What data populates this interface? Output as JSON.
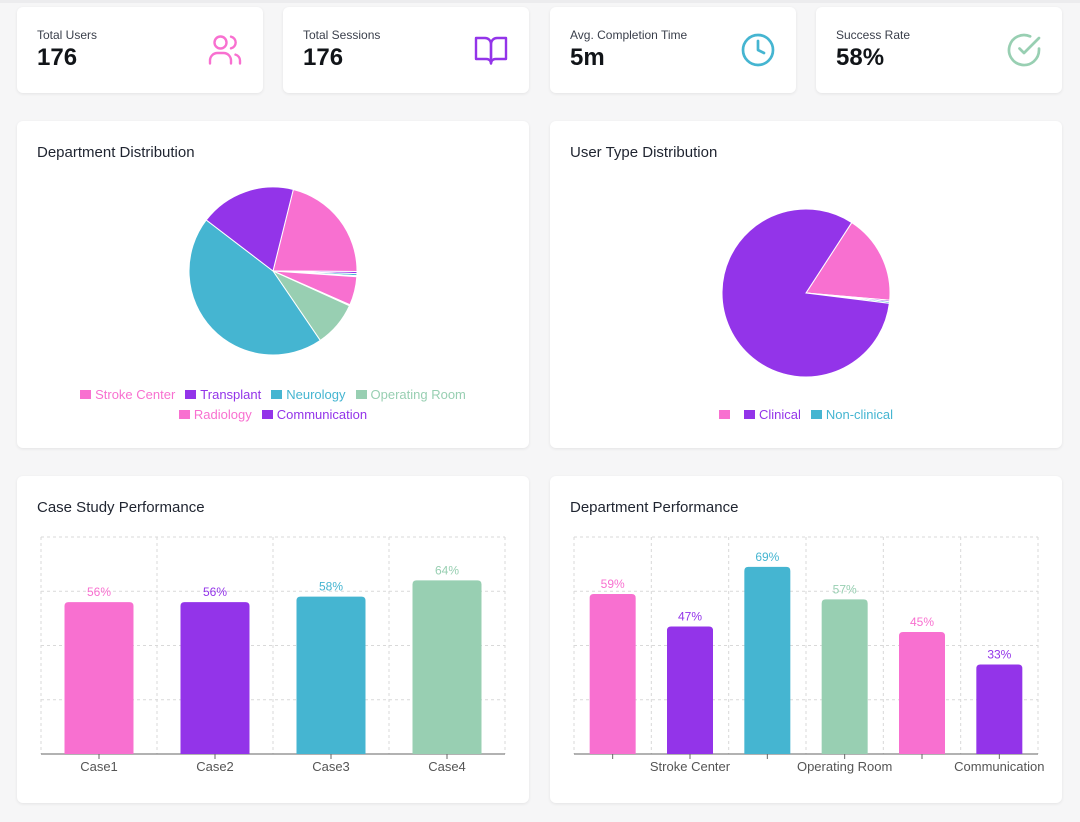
{
  "colors": {
    "pink": "#F870D0",
    "purple": "#9334E9",
    "teal": "#45B5D1",
    "mint": "#98CFB2"
  },
  "stats": [
    {
      "label": "Total Users",
      "value": "176",
      "icon": "users-icon",
      "color": "#F870D0"
    },
    {
      "label": "Total Sessions",
      "value": "176",
      "icon": "book-icon",
      "color": "#9334E9"
    },
    {
      "label": "Avg. Completion Time",
      "value": "5m",
      "icon": "clock-icon",
      "color": "#45B5D1"
    },
    {
      "label": "Success Rate",
      "value": "58%",
      "icon": "check-circle-icon",
      "color": "#98CFB2"
    }
  ],
  "chart_data": [
    {
      "type": "pie",
      "title": "Department Distribution",
      "legend_position": "bottom",
      "slices": [
        {
          "label": "Stroke Center",
          "value": 21.2,
          "color": "#F870D0"
        },
        {
          "label": "Transplant",
          "value": 0.4,
          "color": "#9334E9"
        },
        {
          "label": "Neurology",
          "value": 0.4,
          "color": "#45B5D1"
        },
        {
          "label": "Operating Room",
          "value": 0.2,
          "color": "#98CFB2"
        },
        {
          "label": "Radiology",
          "value": 5.5,
          "color": "#F870D0"
        },
        {
          "label": "Communication",
          "value": 0.2,
          "color": "#9334E9"
        },
        {
          "label": "",
          "value": 8.7,
          "color": "#98CFB2"
        },
        {
          "label": "",
          "value": 44.9,
          "color": "#45B5D1"
        },
        {
          "label": "",
          "value": 18.5,
          "color": "#9334E9"
        }
      ],
      "legend": [
        {
          "label": "Stroke Center",
          "color": "#F870D0"
        },
        {
          "label": "Transplant",
          "color": "#9334E9"
        },
        {
          "label": "Neurology",
          "color": "#45B5D1"
        },
        {
          "label": "Operating Room",
          "color": "#98CFB2"
        },
        {
          "label": "Radiology",
          "color": "#F870D0"
        },
        {
          "label": "Communication",
          "color": "#9334E9"
        }
      ]
    },
    {
      "type": "pie",
      "title": "User Type Distribution",
      "legend_position": "bottom",
      "slices": [
        {
          "label": "",
          "value": 17.2,
          "color": "#F870D0"
        },
        {
          "label": "",
          "value": 0.3,
          "color": "#9334E9"
        },
        {
          "label": "",
          "value": 0.3,
          "color": "#45B5D1"
        },
        {
          "label": "",
          "value": 82.2,
          "color": "#9334E9"
        }
      ],
      "legend": [
        {
          "label": "",
          "color": "#F870D0"
        },
        {
          "label": "Clinical",
          "color": "#9334E9"
        },
        {
          "label": "Non-clinical",
          "color": "#45B5D1"
        }
      ]
    },
    {
      "type": "bar",
      "title": "Case Study Performance",
      "grid": true,
      "ylim": [
        0,
        80
      ],
      "categories": [
        "Case1",
        "Case2",
        "Case3",
        "Case4"
      ],
      "values": [
        56,
        56,
        58,
        64
      ],
      "value_labels": [
        "56%",
        "56%",
        "58%",
        "64%"
      ],
      "colors": [
        "#F870D0",
        "#9334E9",
        "#45B5D1",
        "#98CFB2"
      ]
    },
    {
      "type": "bar",
      "title": "Department Performance",
      "grid": true,
      "ylim": [
        0,
        80
      ],
      "categories": [
        "",
        "Stroke Center",
        "",
        "Operating Room",
        "",
        "Communication"
      ],
      "values": [
        59,
        47,
        69,
        57,
        45,
        33
      ],
      "value_labels": [
        "59%",
        "47%",
        "69%",
        "57%",
        "45%",
        "33%"
      ],
      "colors": [
        "#F870D0",
        "#9334E9",
        "#45B5D1",
        "#98CFB2",
        "#F870D0",
        "#9334E9"
      ]
    }
  ]
}
